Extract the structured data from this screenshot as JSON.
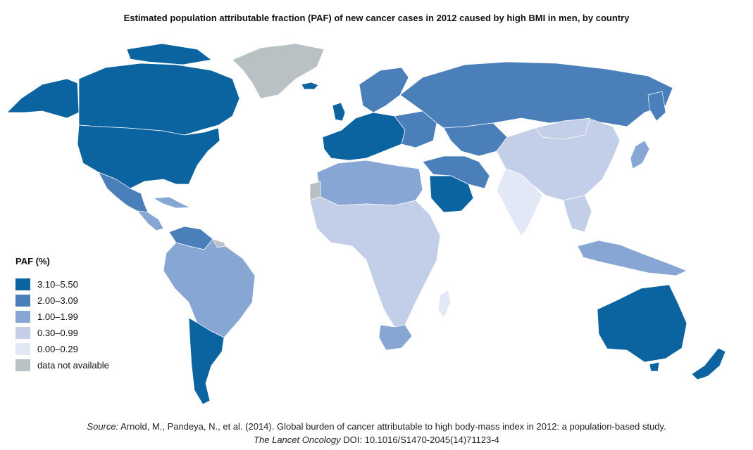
{
  "title": "Estimated population attributable fraction (PAF) of new cancer cases in 2012 caused by high BMI in men, by country",
  "legend": {
    "title": "PAF (%)",
    "items": [
      {
        "label": "3.10–5.50",
        "color": "#0b64a0"
      },
      {
        "label": "2.00–3.09",
        "color": "#4a7fba"
      },
      {
        "label": "1.00–1.99",
        "color": "#87a6d3"
      },
      {
        "label": "0.30–0.99",
        "color": "#c3cfe8"
      },
      {
        "label": "0.00–0.29",
        "color": "#e2e8f5"
      },
      {
        "label": "data not available",
        "color": "#b9c1c4"
      }
    ]
  },
  "source": {
    "label": "Source:",
    "text": " Arnold, M., Pandeya, N., et al. (2014). Global burden of cancer attributable to high body-mass index in 2012: a population-based study.",
    "journal": "The Lancet Oncology",
    "doi": " DOI: 10.1016/S1470-2045(14)71123-4"
  },
  "chart_data": {
    "type": "choropleth",
    "title": "Estimated population attributable fraction (PAF) of new cancer cases in 2012 caused by high BMI in men, by country",
    "legend_placement": "left",
    "bins": [
      "3.10–5.50",
      "2.00–3.09",
      "1.00–1.99",
      "0.30–0.99",
      "0.00–0.29",
      "data not available"
    ],
    "regions": [
      {
        "name": "canada",
        "bin": "3.10–5.50"
      },
      {
        "name": "usa",
        "bin": "3.10–5.50"
      },
      {
        "name": "alaska",
        "bin": "3.10–5.50"
      },
      {
        "name": "greenland",
        "bin": "data not available"
      },
      {
        "name": "mexico",
        "bin": "2.00–3.09"
      },
      {
        "name": "central-america",
        "bin": "1.00–1.99"
      },
      {
        "name": "venezuela",
        "bin": "2.00–3.09"
      },
      {
        "name": "brazil",
        "bin": "1.00–1.99"
      },
      {
        "name": "argentina-chile",
        "bin": "3.10–5.50"
      },
      {
        "name": "russia",
        "bin": "2.00–3.09"
      },
      {
        "name": "europe-west",
        "bin": "3.10–5.50"
      },
      {
        "name": "north-africa",
        "bin": "1.00–1.99"
      },
      {
        "name": "saudi-arabia",
        "bin": "3.10–5.50"
      },
      {
        "name": "sub-saharan-africa",
        "bin": "0.30–0.99"
      },
      {
        "name": "south-africa",
        "bin": "1.00–1.99"
      },
      {
        "name": "china",
        "bin": "0.30–0.99"
      },
      {
        "name": "india",
        "bin": "0.00–0.29"
      },
      {
        "name": "japan",
        "bin": "1.00–1.99"
      },
      {
        "name": "australia",
        "bin": "3.10–5.50"
      },
      {
        "name": "new-zealand",
        "bin": "3.10–5.50"
      }
    ]
  }
}
